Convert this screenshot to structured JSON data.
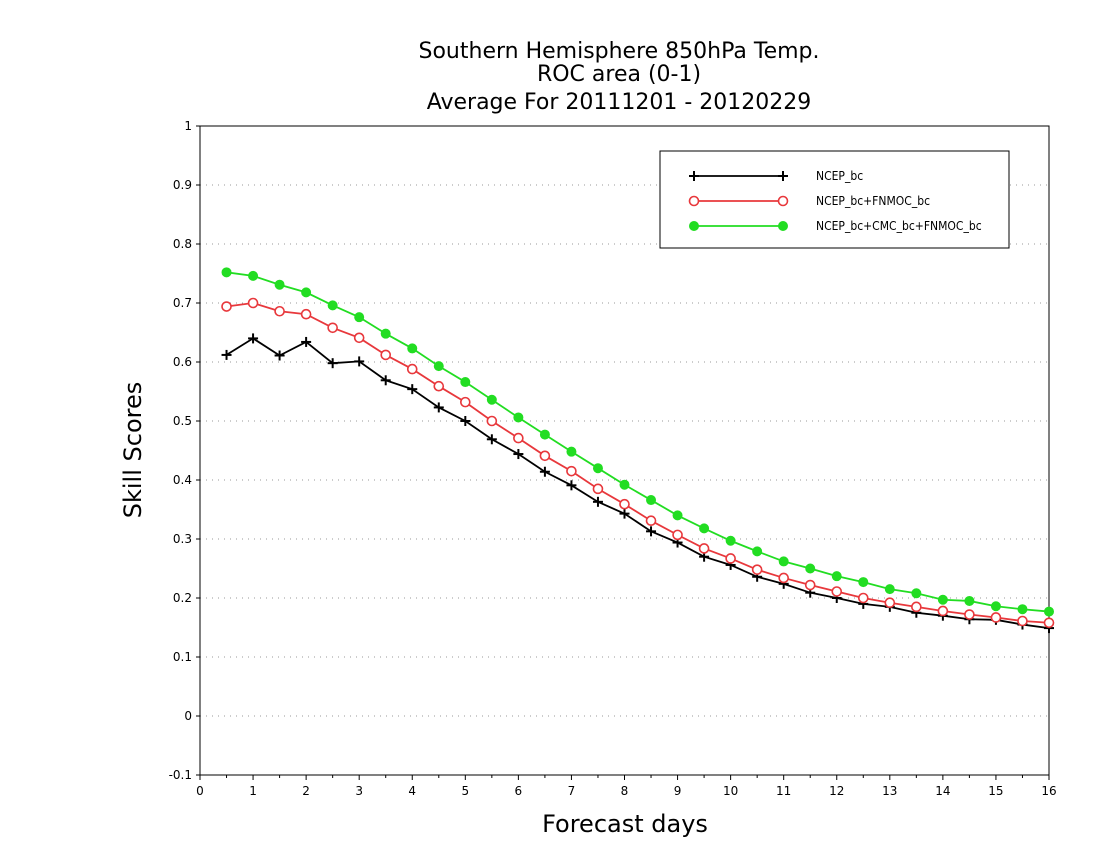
{
  "chart_data": {
    "type": "line",
    "title": [
      "Southern Hemisphere 850hPa Temp.",
      "ROC area (0-1)",
      "Average For 20111201 - 20120229"
    ],
    "xlabel": "Forecast days",
    "ylabel": "Skill Scores",
    "xlim": [
      0,
      16
    ],
    "ylim": [
      -0.1,
      1
    ],
    "x_ticks": [
      0,
      1,
      2,
      3,
      4,
      5,
      6,
      7,
      8,
      9,
      10,
      11,
      12,
      13,
      14,
      15,
      16
    ],
    "x_tick_labels": [
      "0",
      "1",
      "2",
      "3",
      "4",
      "5",
      "6",
      "7",
      "8",
      "9",
      "10",
      "11",
      "12",
      "13",
      "14",
      "15",
      "16"
    ],
    "y_ticks": [
      -0.1,
      0,
      0.1,
      0.2,
      0.3,
      0.4,
      0.5,
      0.6,
      0.7,
      0.8,
      0.9,
      1
    ],
    "y_tick_labels": [
      "-0.1",
      "0",
      "0.1",
      "0.2",
      "0.3",
      "0.4",
      "0.5",
      "0.6",
      "0.7",
      "0.8",
      "0.9",
      "1"
    ],
    "grid": "horizontal dotted",
    "legend_position": "top-right",
    "x": [
      0.5,
      1,
      1.5,
      2,
      2.5,
      3,
      3.5,
      4,
      4.5,
      5,
      5.5,
      6,
      6.5,
      7,
      7.5,
      8,
      8.5,
      9,
      9.5,
      10,
      10.5,
      11,
      11.5,
      12,
      12.5,
      13,
      13.5,
      14,
      14.5,
      15,
      15.5,
      16
    ],
    "series": [
      {
        "name": "NCEP_bc",
        "color": "#000000",
        "marker": "plus",
        "values": [
          0.612,
          0.64,
          0.611,
          0.634,
          0.598,
          0.601,
          0.569,
          0.554,
          0.523,
          0.5,
          0.469,
          0.444,
          0.414,
          0.391,
          0.363,
          0.343,
          0.313,
          0.294,
          0.27,
          0.256,
          0.236,
          0.224,
          0.209,
          0.2,
          0.19,
          0.185,
          0.175,
          0.17,
          0.164,
          0.163,
          0.155,
          0.149
        ]
      },
      {
        "name": "NCEP_bc+FNMOC_bc",
        "color": "#e8383c",
        "marker": "open-circle",
        "values": [
          0.694,
          0.7,
          0.686,
          0.681,
          0.658,
          0.641,
          0.612,
          0.588,
          0.559,
          0.532,
          0.5,
          0.471,
          0.441,
          0.415,
          0.385,
          0.359,
          0.331,
          0.307,
          0.284,
          0.267,
          0.248,
          0.234,
          0.222,
          0.211,
          0.2,
          0.192,
          0.185,
          0.178,
          0.172,
          0.167,
          0.161,
          0.158
        ]
      },
      {
        "name": "NCEP_bc+CMC_bc+FNMOC_bc",
        "color": "#22dd22",
        "marker": "filled-circle",
        "values": [
          0.752,
          0.746,
          0.731,
          0.718,
          0.696,
          0.676,
          0.648,
          0.623,
          0.593,
          0.566,
          0.536,
          0.506,
          0.477,
          0.448,
          0.42,
          0.392,
          0.366,
          0.34,
          0.318,
          0.297,
          0.279,
          0.262,
          0.25,
          0.237,
          0.227,
          0.215,
          0.208,
          0.197,
          0.195,
          0.186,
          0.181,
          0.177
        ]
      }
    ]
  }
}
